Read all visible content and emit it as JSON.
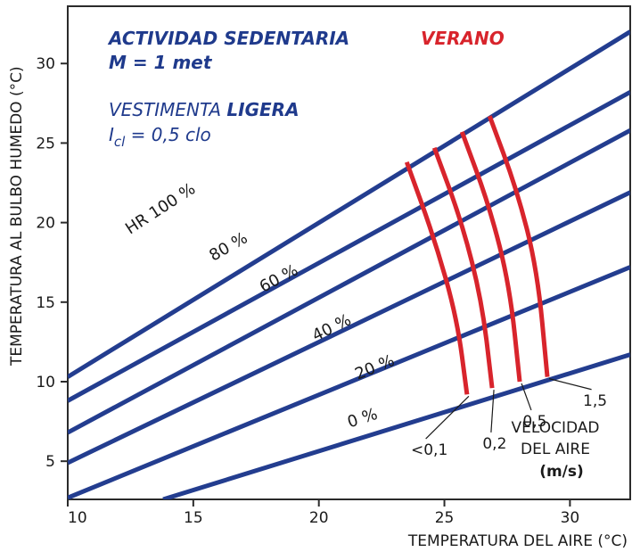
{
  "chart_data": {
    "type": "line",
    "title_line1": "ACTIVIDAD SEDENTARIA",
    "title_line2": "M = 1 met",
    "season": "VERANO",
    "clothing_prefix": "VESTIMENTA ",
    "clothing_bold": "LIGERA",
    "clo_symbol": "I",
    "clo_subscript": "cl",
    "clo_value": " = 0,5 clo",
    "xlabel": "TEMPERATURA DEL AIRE (°C)",
    "ylabel": "TEMPERATURA AL BULBO HUMEDO (°C)",
    "xlim": [
      10,
      32.4
    ],
    "ylim": [
      2.6,
      33.6
    ],
    "x_ticks": [
      10,
      15,
      20,
      25,
      30
    ],
    "y_ticks": [
      5,
      10,
      15,
      20,
      25,
      30
    ],
    "humidity_series": [
      {
        "name": "HR 100 %",
        "points": [
          [
            10,
            10.3
          ],
          [
            32.4,
            32.0
          ]
        ],
        "label_pos": [
          13.8,
          20.6
        ],
        "label_angle": 33
      },
      {
        "name": "80 %",
        "points": [
          [
            10,
            8.8
          ],
          [
            32.4,
            28.2
          ]
        ],
        "label_pos": [
          16.5,
          18.2
        ],
        "label_angle": 30
      },
      {
        "name": "60 %",
        "points": [
          [
            10,
            6.8
          ],
          [
            32.4,
            25.8
          ]
        ],
        "label_pos": [
          18.5,
          16.2
        ],
        "label_angle": 28
      },
      {
        "name": "40 %",
        "points": [
          [
            10,
            4.9
          ],
          [
            32.4,
            21.9
          ]
        ],
        "label_pos": [
          20.6,
          13.1
        ],
        "label_angle": 26
      },
      {
        "name": "20 %",
        "points": [
          [
            10,
            2.7
          ],
          [
            32.4,
            17.2
          ]
        ],
        "label_pos": [
          22.3,
          10.6
        ],
        "label_angle": 22
      },
      {
        "name": "0 %",
        "points": [
          [
            13.8,
            2.6
          ],
          [
            32.4,
            11.7
          ]
        ],
        "label_pos": [
          21.8,
          7.4
        ],
        "label_angle": 18
      }
    ],
    "velocity_series": [
      {
        "name": "<0,1",
        "points": [
          [
            23.5,
            23.8
          ],
          [
            24.6,
            19.0
          ],
          [
            25.5,
            14.0
          ],
          [
            25.9,
            9.2
          ]
        ],
        "label_pos": [
          24.4,
          5.4
        ]
      },
      {
        "name": "0,2",
        "points": [
          [
            24.6,
            24.7
          ],
          [
            25.7,
            20.0
          ],
          [
            26.5,
            15.0
          ],
          [
            26.9,
            9.6
          ]
        ],
        "label_pos": [
          27.0,
          5.8
        ]
      },
      {
        "name": "0,5",
        "points": [
          [
            25.7,
            25.7
          ],
          [
            26.8,
            21.0
          ],
          [
            27.6,
            16.0
          ],
          [
            28.0,
            10.0
          ]
        ],
        "label_pos": [
          28.6,
          7.2
        ]
      },
      {
        "name": "1,5",
        "points": [
          [
            26.8,
            26.7
          ],
          [
            27.9,
            22.0
          ],
          [
            28.7,
            17.0
          ],
          [
            29.1,
            10.3
          ]
        ],
        "label_pos": [
          31.0,
          8.5
        ]
      }
    ],
    "velocity_title_line1": "VELOCIDAD",
    "velocity_title_line2": "DEL AIRE",
    "velocity_unit": "(m/s)"
  }
}
